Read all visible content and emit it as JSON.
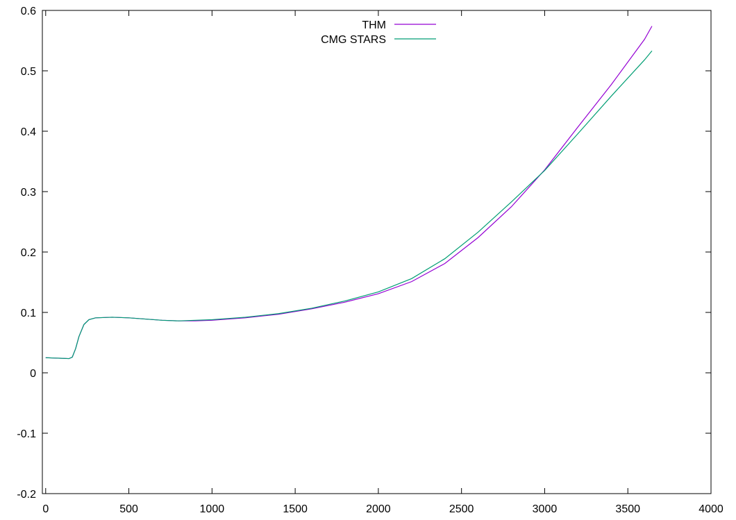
{
  "chart_data": {
    "type": "line",
    "title": "",
    "xlabel": "",
    "ylabel": "",
    "xlim": [
      -20,
      4000
    ],
    "ylim": [
      -0.2,
      0.6
    ],
    "grid": false,
    "legend_position": "top-center",
    "x_ticks": [
      0,
      500,
      1000,
      1500,
      2000,
      2500,
      3000,
      3500,
      4000
    ],
    "y_ticks": [
      -0.2,
      -0.1,
      0,
      0.1,
      0.2,
      0.3,
      0.4,
      0.5,
      0.6
    ],
    "x_tick_labels": [
      "0",
      "500",
      "1000",
      "1500",
      "2000",
      "2500",
      "3000",
      "3500",
      "4000"
    ],
    "y_tick_labels": [
      "-0.2",
      "-0.1",
      "0",
      "0.1",
      "0.2",
      "0.3",
      "0.4",
      "0.5",
      "0.6"
    ],
    "series": [
      {
        "name": "THM",
        "color": "#9400d3",
        "x": [
          0,
          50,
          100,
          140,
          160,
          180,
          200,
          230,
          260,
          300,
          400,
          500,
          600,
          700,
          800,
          900,
          1000,
          1200,
          1400,
          1600,
          1800,
          2000,
          2200,
          2400,
          2600,
          2800,
          3000,
          3200,
          3400,
          3600,
          3645
        ],
        "y": [
          0.025,
          0.0245,
          0.024,
          0.0235,
          0.026,
          0.04,
          0.06,
          0.08,
          0.088,
          0.091,
          0.092,
          0.091,
          0.089,
          0.087,
          0.086,
          0.086,
          0.087,
          0.091,
          0.097,
          0.106,
          0.117,
          0.131,
          0.151,
          0.181,
          0.224,
          0.275,
          0.336,
          0.407,
          0.477,
          0.552,
          0.574
        ]
      },
      {
        "name": "CMG STARS",
        "color": "#009e73",
        "x": [
          0,
          50,
          100,
          140,
          160,
          180,
          200,
          230,
          260,
          300,
          400,
          500,
          600,
          700,
          800,
          900,
          1000,
          1200,
          1400,
          1600,
          1800,
          2000,
          2200,
          2400,
          2600,
          2800,
          3000,
          3200,
          3400,
          3600,
          3645
        ],
        "y": [
          0.025,
          0.0245,
          0.024,
          0.0235,
          0.026,
          0.04,
          0.06,
          0.08,
          0.088,
          0.091,
          0.092,
          0.091,
          0.089,
          0.087,
          0.086,
          0.087,
          0.088,
          0.092,
          0.098,
          0.107,
          0.119,
          0.134,
          0.156,
          0.189,
          0.233,
          0.283,
          0.335,
          0.396,
          0.458,
          0.518,
          0.533
        ]
      }
    ]
  }
}
